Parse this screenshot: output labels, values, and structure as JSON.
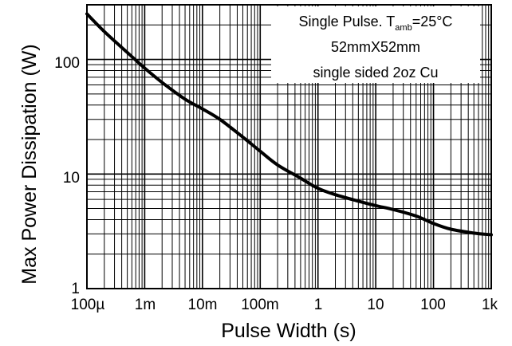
{
  "chart_data": {
    "type": "line",
    "title": "",
    "xlabel": "Pulse Width (s)",
    "ylabel": "Max Power Dissipation (W)",
    "xscale": "log",
    "yscale": "log",
    "xlim": [
      0.0001,
      1000
    ],
    "ylim": [
      1,
      300
    ],
    "grid": true,
    "x_tick_labels": [
      "100µ",
      "1m",
      "10m",
      "100m",
      "1",
      "10",
      "100",
      "1k"
    ],
    "y_tick_labels": [
      "1",
      "10",
      "100"
    ],
    "annotation": {
      "line1_prefix": "Single Pulse. T",
      "line1_sub": "amb",
      "line1_suffix": "=25°C",
      "line2": "52mmX52mm",
      "line3": "single sided 2oz Cu"
    },
    "series": [
      {
        "color": "#000000",
        "x": [
          0.0001,
          0.0002,
          0.0005,
          0.001,
          0.002,
          0.005,
          0.01,
          0.02,
          0.05,
          0.1,
          0.2,
          0.5,
          1,
          2,
          5,
          10,
          20,
          50,
          100,
          200,
          500,
          1000
        ],
        "y": [
          250,
          175,
          115,
          84,
          63,
          45,
          37,
          30,
          21,
          15.8,
          12,
          9.2,
          7.5,
          6.6,
          5.8,
          5.3,
          4.9,
          4.3,
          3.7,
          3.3,
          3.05,
          2.95
        ]
      }
    ]
  }
}
